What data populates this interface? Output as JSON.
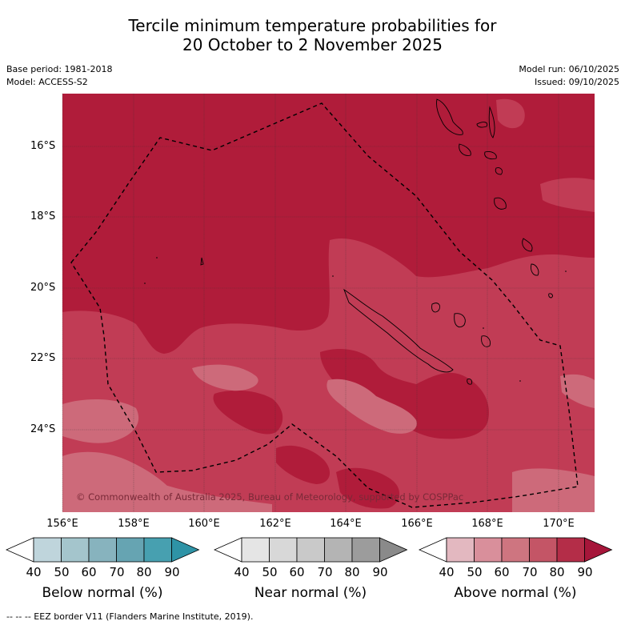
{
  "title": {
    "line1": "Tercile minimum temperature probabilities for",
    "line2": "20 October to 2 November 2025"
  },
  "meta": {
    "base_period": "Base period: 1981-2018",
    "model": "Model: ACCESS-S2",
    "model_run": "Model run: 06/10/2025",
    "issued": "Issued: 09/10/2025"
  },
  "map": {
    "lat_labels": [
      "16°S",
      "18°S",
      "20°S",
      "22°S",
      "24°S"
    ],
    "lon_labels": [
      "156°E",
      "158°E",
      "160°E",
      "162°E",
      "164°E",
      "166°E",
      "168°E",
      "170°E"
    ],
    "copyright": "© Commonwealth of Australia 2025, Bureau of Meteorology, supported by COSPPac",
    "colors": {
      "above_80": "#b01c3a",
      "above_70": "#c13c55",
      "above_60": "#cd6a7a"
    }
  },
  "colorbars": [
    {
      "title": "Below normal (%)",
      "ticks": [
        "40",
        "50",
        "60",
        "70",
        "80",
        "90"
      ],
      "colors": [
        "#ffffff",
        "#bfd5dc",
        "#a4c5cc",
        "#87b3be",
        "#66a4b2",
        "#47a0b0",
        "#2e93a6"
      ]
    },
    {
      "title": "Near normal (%)",
      "ticks": [
        "40",
        "50",
        "60",
        "70",
        "80",
        "90"
      ],
      "colors": [
        "#ffffff",
        "#e5e5e5",
        "#d8d8d8",
        "#c9c9c9",
        "#b4b4b4",
        "#9c9c9c",
        "#8a8a8a"
      ]
    },
    {
      "title": "Above normal (%)",
      "ticks": [
        "40",
        "50",
        "60",
        "70",
        "80",
        "90"
      ],
      "colors": [
        "#ffffff",
        "#e3b8c0",
        "#d98f9b",
        "#ce7580",
        "#c45566",
        "#b42d48",
        "#a6163a"
      ]
    }
  ],
  "footnote": "--  --  -- EEZ border V11 (Flanders Marine Institute, 2019)."
}
